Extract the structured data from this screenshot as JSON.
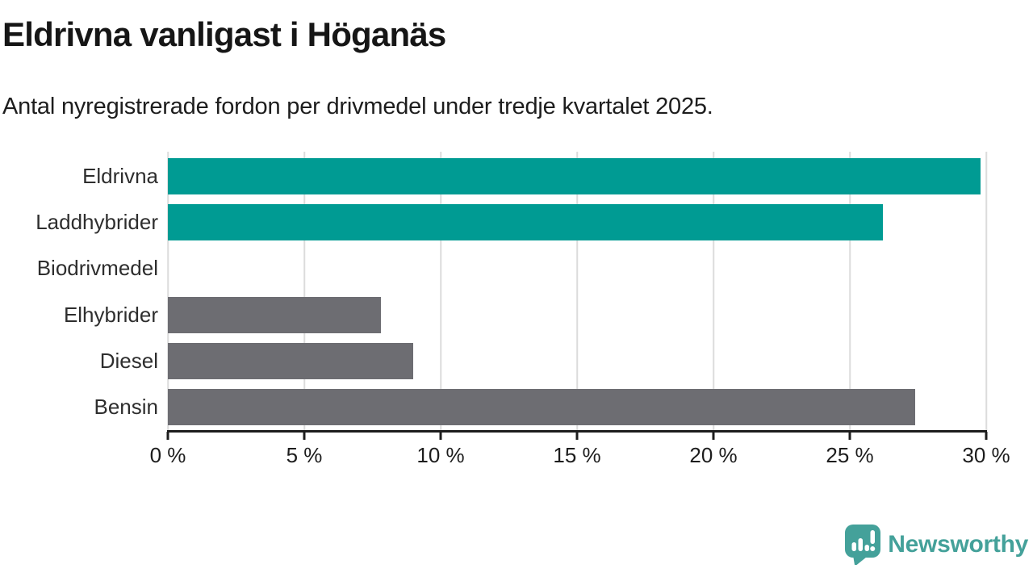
{
  "header": {
    "title": "Eldrivna vanligast i Höganäs",
    "subtitle": "Antal nyregistrerade fordon per drivmedel under tredje kvartalet 2025."
  },
  "chart_data": {
    "type": "bar",
    "orientation": "horizontal",
    "categories": [
      "Eldrivna",
      "Laddhybrider",
      "Biodrivmedel",
      "Elhybrider",
      "Diesel",
      "Bensin"
    ],
    "values": [
      29.8,
      26.2,
      0,
      7.8,
      9.0,
      27.4
    ],
    "unit": "%",
    "bar_colors": [
      "#009b93",
      "#009b93",
      "#6d6d72",
      "#6d6d72",
      "#6d6d72",
      "#6d6d72"
    ],
    "xlim": [
      0,
      30
    ],
    "x_ticks": [
      0,
      5,
      10,
      15,
      20,
      25,
      30
    ],
    "x_tick_labels": [
      "0 %",
      "5 %",
      "10 %",
      "15 %",
      "20 %",
      "25 %",
      "30 %"
    ],
    "grid": true,
    "legend": "none"
  },
  "colors": {
    "teal_bar": "#009b93",
    "gray_bar": "#6d6d72",
    "gridline": "#dcdcdc",
    "axis": "#1d1d1d",
    "logo_teal": "#44a19a"
  },
  "footer": {
    "logo_text": "Newsworthy"
  }
}
